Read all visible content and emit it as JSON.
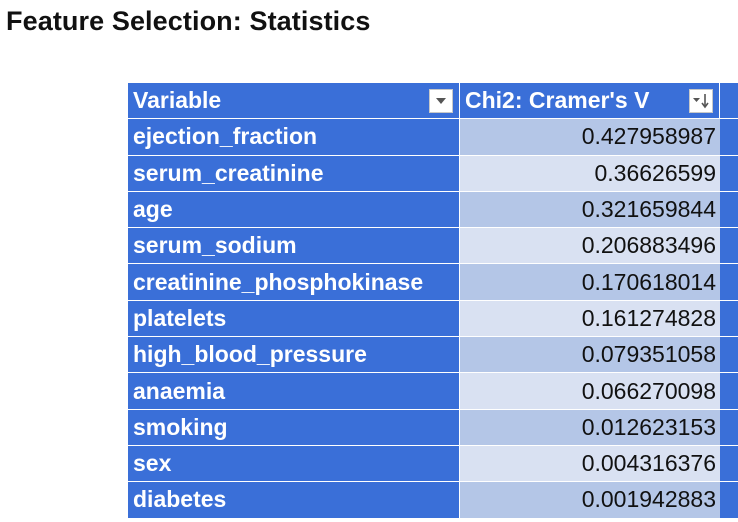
{
  "title": "Feature Selection: Statistics",
  "colors": {
    "header_blue": "#3a6fd8",
    "band_dark": "#b4c6e7",
    "band_light": "#d9e1f2"
  },
  "table": {
    "columns": [
      {
        "label": "Variable",
        "filter_icon": "dropdown-arrow-icon"
      },
      {
        "label": "Chi2: Cramer's V",
        "filter_icon": "sort-descending-icon"
      }
    ],
    "rows": [
      {
        "variable": "ejection_fraction",
        "value": "0.427958987"
      },
      {
        "variable": "serum_creatinine",
        "value": "0.36626599"
      },
      {
        "variable": "age",
        "value": "0.321659844"
      },
      {
        "variable": "serum_sodium",
        "value": "0.206883496"
      },
      {
        "variable": "creatinine_phosphokinase",
        "value": "0.170618014"
      },
      {
        "variable": "platelets",
        "value": "0.161274828"
      },
      {
        "variable": "high_blood_pressure",
        "value": "0.079351058"
      },
      {
        "variable": "anaemia",
        "value": "0.066270098"
      },
      {
        "variable": "smoking",
        "value": "0.012623153"
      },
      {
        "variable": "sex",
        "value": "0.004316376"
      },
      {
        "variable": "diabetes",
        "value": "0.001942883"
      }
    ]
  }
}
